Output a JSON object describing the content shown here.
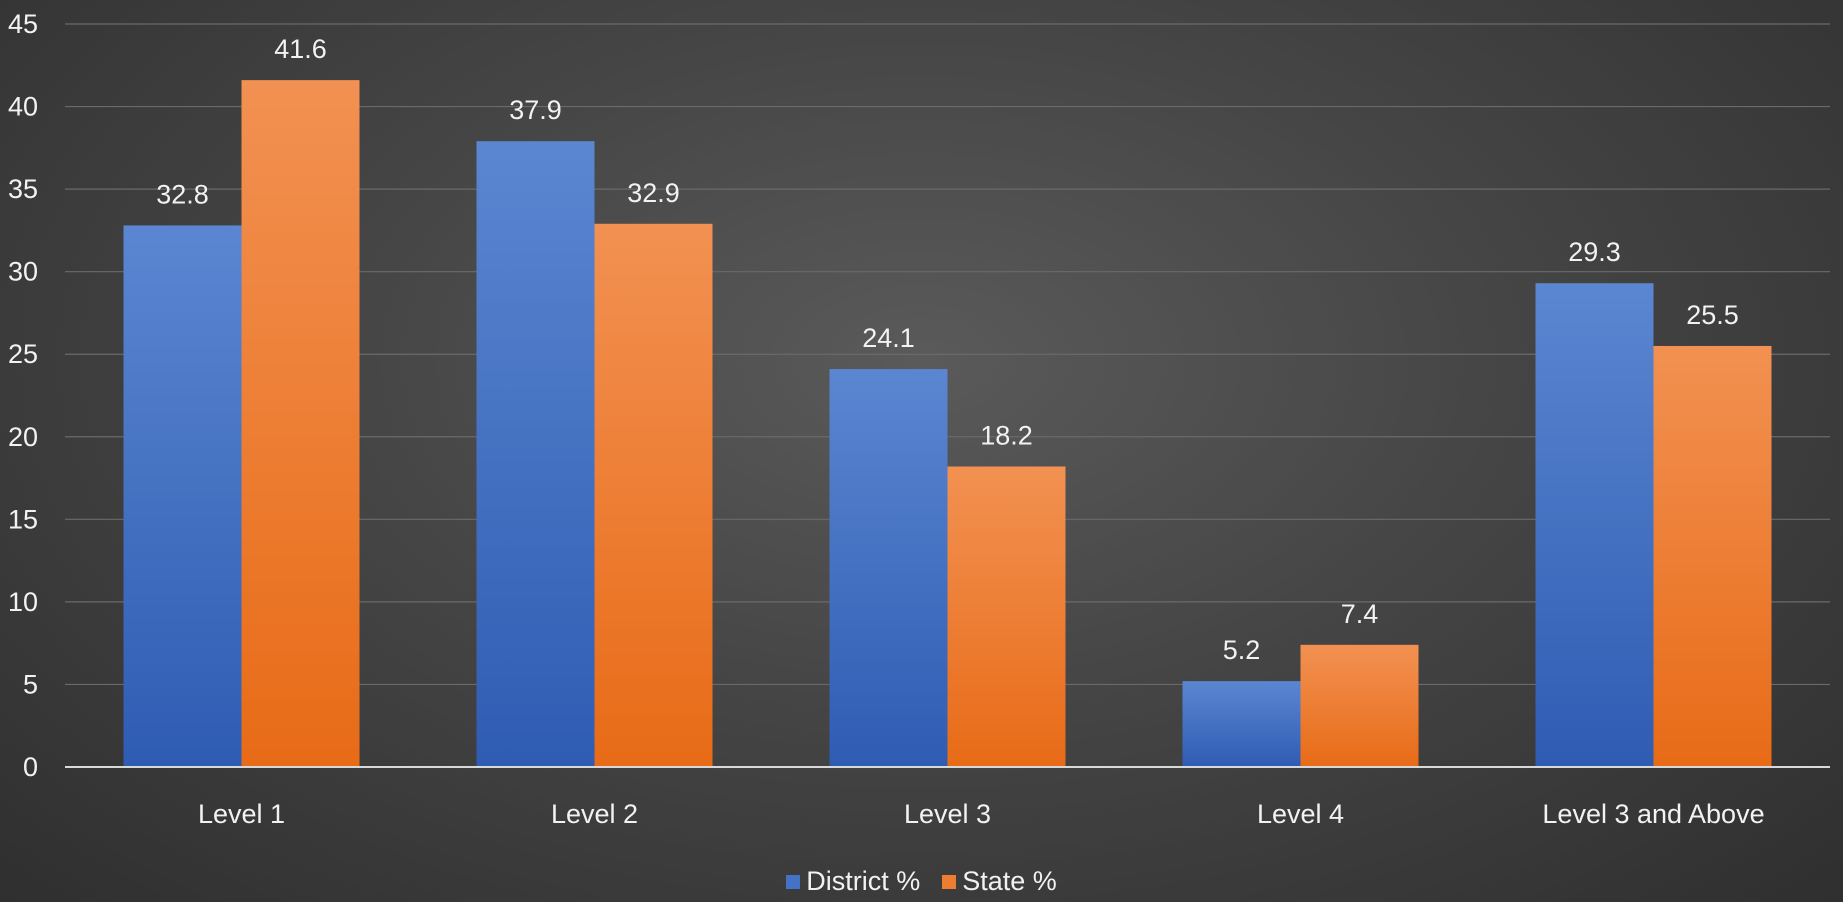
{
  "chart_data": {
    "type": "bar",
    "categories": [
      "Level 1",
      "Level 2",
      "Level 3",
      "Level 4",
      "Level 3 and Above"
    ],
    "series": [
      {
        "name": "District %",
        "values": [
          32.8,
          37.9,
          24.1,
          5.2,
          29.3
        ],
        "color": "#4472c4"
      },
      {
        "name": "State %",
        "values": [
          41.6,
          32.9,
          18.2,
          7.4,
          25.5
        ],
        "color": "#ed7d31"
      }
    ],
    "ylim": [
      0,
      45
    ],
    "yticks": [
      0,
      5,
      10,
      15,
      20,
      25,
      30,
      35,
      40,
      45
    ],
    "ytick_labels": [
      "0",
      "5",
      "10",
      "15",
      "20",
      "25",
      "30",
      "35",
      "40",
      "45"
    ],
    "data_labels": [
      [
        "32.8",
        "37.9",
        "24.1",
        "5.2",
        "29.3"
      ],
      [
        "41.6",
        "32.9",
        "18.2",
        "7.4",
        "25.5"
      ]
    ],
    "grid": true,
    "legend_position": "bottom"
  }
}
